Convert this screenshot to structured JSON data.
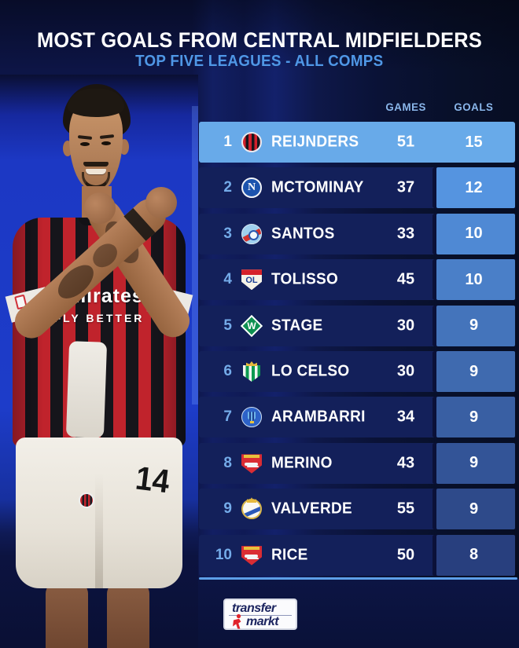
{
  "header": {
    "title": "MOST GOALS FROM CENTRAL MIDFIELDERS",
    "subtitle": "TOP FIVE LEAGUES - ALL COMPS"
  },
  "chart_data": {
    "type": "table",
    "title": "MOST GOALS FROM CENTRAL MIDFIELDERS",
    "subtitle": "TOP FIVE LEAGUES - ALL COMPS",
    "column_labels": {
      "games": "GAMES",
      "goals": "GOALS"
    },
    "rows": [
      {
        "rank": "1",
        "player": "REIJNDERS",
        "club": "AC Milan",
        "club_slug": "ac-milan",
        "games": "51",
        "goals": "15",
        "highlighted": true
      },
      {
        "rank": "2",
        "player": "MCTOMINAY",
        "club": "Napoli",
        "club_slug": "napoli",
        "games": "37",
        "goals": "12"
      },
      {
        "rank": "3",
        "player": "SANTOS",
        "club": "RC Strasbourg",
        "club_slug": "strasbourg",
        "games": "33",
        "goals": "10"
      },
      {
        "rank": "4",
        "player": "TOLISSO",
        "club": "Olympique Lyon",
        "club_slug": "lyon",
        "games": "45",
        "goals": "10"
      },
      {
        "rank": "5",
        "player": "STAGE",
        "club": "Werder Bremen",
        "club_slug": "werder",
        "games": "30",
        "goals": "9"
      },
      {
        "rank": "6",
        "player": "LO CELSO",
        "club": "Real Betis",
        "club_slug": "betis",
        "games": "30",
        "goals": "9"
      },
      {
        "rank": "7",
        "player": "ARAMBARRI",
        "club": "Getafe",
        "club_slug": "getafe",
        "games": "34",
        "goals": "9"
      },
      {
        "rank": "8",
        "player": "MERINO",
        "club": "Arsenal",
        "club_slug": "arsenal",
        "games": "43",
        "goals": "9"
      },
      {
        "rank": "9",
        "player": "VALVERDE",
        "club": "Real Madrid",
        "club_slug": "real-madrid",
        "games": "55",
        "goals": "9"
      },
      {
        "rank": "10",
        "player": "RICE",
        "club": "Arsenal",
        "club_slug": "arsenal",
        "games": "50",
        "goals": "8"
      }
    ]
  },
  "player_image": {
    "sponsor_line1": "Emirates",
    "sponsor_line2": "FLY BETTER",
    "shorts_number": "14"
  },
  "footer": {
    "logo_line1": "transfer",
    "logo_line2": "markt"
  },
  "colors": {
    "accent_light_blue": "#5d9fe8",
    "subtitle_blue": "#4f97e6",
    "row_bg": "#13205a",
    "row_highlight": "#68aae9",
    "goals_cell_top": "#5594e0",
    "goals_cell_bottom": "#283f7e",
    "rank_color": "#74abe9",
    "header_label_color": "#8ab6ea",
    "divider_line": "#5d9fe8",
    "photo_background_blue": "#1d3cc9"
  }
}
